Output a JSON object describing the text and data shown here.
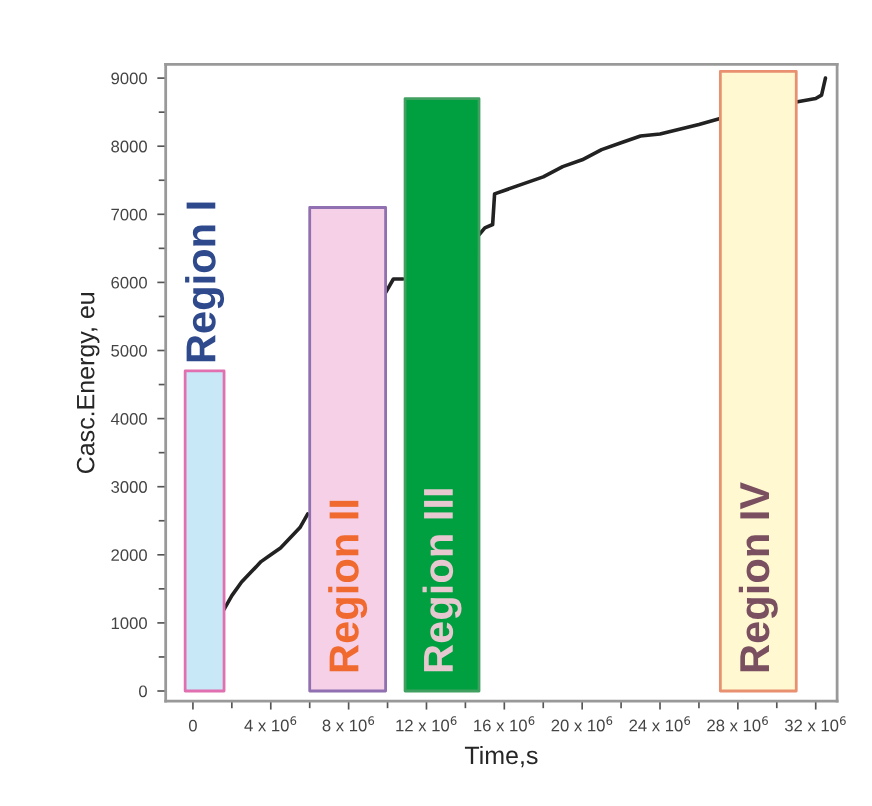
{
  "chart_data": {
    "type": "line",
    "xlabel": "Time,s",
    "ylabel": "Casc.Energy, eu",
    "xlim": [
      -1400000,
      33100000
    ],
    "ylim": [
      -150,
      9200
    ],
    "xticks": [
      0,
      {
        "value": 2000000,
        "label": null
      },
      {
        "value": 4000000,
        "label": "4 x 10$^{6}$"
      },
      {
        "value": 6000000,
        "label": null
      },
      {
        "value": 8000000,
        "label": "8 x 10$^{6}$"
      },
      {
        "value": 10000000,
        "label": null
      },
      {
        "value": 12000000,
        "label": "12 x 10$^{6}$"
      },
      {
        "value": 14000000,
        "label": null
      },
      {
        "value": 16000000,
        "label": "16 x 10$^{6}$"
      },
      {
        "value": 18000000,
        "label": null
      },
      {
        "value": 20000000,
        "label": "20 x 10$^{6}$"
      },
      {
        "value": 22000000,
        "label": null
      },
      {
        "value": 24000000,
        "label": "24 x 10$^{6}$"
      },
      {
        "value": 26000000,
        "label": null
      },
      {
        "value": 28000000,
        "label": "28 x 10$^{6}$"
      },
      {
        "value": 30000000,
        "label": null
      },
      {
        "value": 32000000,
        "label": "32 x 10$^{6}$"
      }
    ],
    "yticks": [
      0,
      {
        "value": 500,
        "label": null
      },
      1000,
      {
        "value": 1500,
        "label": null
      },
      2000,
      {
        "value": 2500,
        "label": null
      },
      3000,
      {
        "value": 3500,
        "label": null
      },
      4000,
      {
        "value": 4500,
        "label": null
      },
      5000,
      {
        "value": 5500,
        "label": null
      },
      6000,
      {
        "value": 6500,
        "label": null
      },
      7000,
      {
        "value": 7500,
        "label": null
      },
      8000,
      {
        "value": 8500,
        "label": null
      },
      9000
    ],
    "grid": false,
    "legend": false,
    "series": [
      {
        "color": "#222222",
        "x": [
          1600000,
          2000000,
          2500000,
          3000000,
          3500000,
          4000000,
          4500000,
          5000000,
          5500000,
          5900000,
          8000000,
          9900000,
          10300000,
          10800000,
          12800000,
          14700000,
          15000000,
          15400000,
          15500000,
          16000000,
          17000000,
          18000000,
          19000000,
          20000000,
          21000000,
          22000000,
          23000000,
          24000000,
          25000000,
          26000000,
          27000000,
          29000000,
          31000000,
          32000000,
          32300000,
          32500000
        ],
        "values": [
          1200,
          1400,
          1600,
          1750,
          1900,
          2000,
          2100,
          2250,
          2400,
          2600,
          null,
          5850,
          6050,
          6050,
          null,
          6700,
          6800,
          6850,
          7300,
          7350,
          7450,
          7550,
          7700,
          7800,
          7950,
          8050,
          8150,
          8180,
          8250,
          8320,
          8400,
          null,
          8650,
          8700,
          8750,
          9000
        ]
      },
      {
        "type": "area",
        "name": "Region I",
        "color": "#c9e8f7",
        "x": [
          -400000,
          1600000
        ],
        "values": [
          4700,
          4700
        ]
      },
      {
        "type": "area",
        "name": "Region II",
        "color": "#f5d0e6",
        "x": [
          6000000,
          9900000
        ],
        "values": [
          7100,
          7100
        ]
      },
      {
        "type": "area",
        "name": "Region III",
        "color": "#00a040",
        "x": [
          10900000,
          14700000
        ],
        "values": [
          8700,
          8700
        ]
      },
      {
        "type": "area",
        "name": "Region IV",
        "color": "#fff8d0",
        "x": [
          27100000,
          31000000
        ],
        "values": [
          9100,
          9100
        ]
      }
    ]
  }
}
